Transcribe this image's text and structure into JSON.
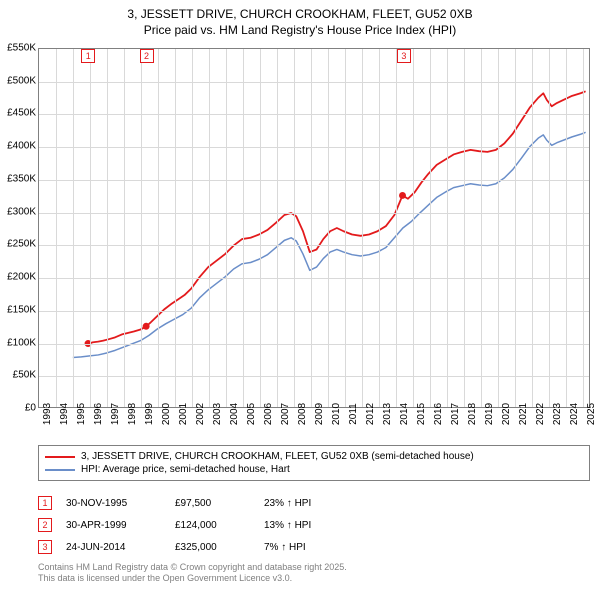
{
  "title": {
    "line1": "3, JESSETT DRIVE, CHURCH CROOKHAM, FLEET, GU52 0XB",
    "line2": "Price paid vs. HM Land Registry's House Price Index (HPI)"
  },
  "chart": {
    "type": "line",
    "background_color": "#ffffff",
    "border_color": "#808080",
    "grid_color": "#d9d9d9",
    "ylim": [
      0,
      550000
    ],
    "ytick_step": 50000,
    "yticks": [
      {
        "v": 0,
        "label": "£0"
      },
      {
        "v": 50000,
        "label": "£50K"
      },
      {
        "v": 100000,
        "label": "£100K"
      },
      {
        "v": 150000,
        "label": "£150K"
      },
      {
        "v": 200000,
        "label": "£200K"
      },
      {
        "v": 250000,
        "label": "£250K"
      },
      {
        "v": 300000,
        "label": "£300K"
      },
      {
        "v": 350000,
        "label": "£350K"
      },
      {
        "v": 400000,
        "label": "£400K"
      },
      {
        "v": 450000,
        "label": "£450K"
      },
      {
        "v": 500000,
        "label": "£500K"
      },
      {
        "v": 550000,
        "label": "£550K"
      }
    ],
    "xlim": [
      1993,
      2025.5
    ],
    "xticks": [
      1993,
      1994,
      1995,
      1996,
      1997,
      1998,
      1999,
      2000,
      2001,
      2002,
      2003,
      2004,
      2005,
      2006,
      2007,
      2008,
      2009,
      2010,
      2011,
      2012,
      2013,
      2014,
      2015,
      2016,
      2017,
      2018,
      2019,
      2020,
      2021,
      2022,
      2023,
      2024,
      2025
    ],
    "series": [
      {
        "key": "property",
        "label": "3, JESSETT DRIVE, CHURCH CROOKHAM, FLEET, GU52 0XB (semi-detached house)",
        "color": "#e31a1c",
        "line_width": 1.8,
        "data": [
          [
            1995.9,
            97500
          ],
          [
            1996.2,
            99500
          ],
          [
            1996.5,
            100500
          ],
          [
            1996.8,
            102000
          ],
          [
            1997.1,
            104000
          ],
          [
            1997.5,
            107000
          ],
          [
            1997.9,
            111500
          ],
          [
            1998.3,
            114000
          ],
          [
            1998.6,
            116000
          ],
          [
            1999.0,
            119000
          ],
          [
            1999.33,
            124000
          ],
          [
            1999.6,
            130000
          ],
          [
            2000.0,
            140000
          ],
          [
            2000.4,
            150000
          ],
          [
            2000.8,
            158000
          ],
          [
            2001.2,
            165000
          ],
          [
            2001.6,
            172000
          ],
          [
            2002.0,
            182000
          ],
          [
            2002.5,
            200000
          ],
          [
            2003.0,
            215000
          ],
          [
            2003.5,
            225000
          ],
          [
            2004.0,
            235000
          ],
          [
            2004.5,
            248000
          ],
          [
            2005.0,
            258000
          ],
          [
            2005.5,
            260000
          ],
          [
            2006.0,
            265000
          ],
          [
            2006.5,
            272000
          ],
          [
            2007.0,
            283000
          ],
          [
            2007.5,
            295000
          ],
          [
            2007.9,
            298000
          ],
          [
            2008.2,
            293000
          ],
          [
            2008.6,
            270000
          ],
          [
            2009.0,
            238000
          ],
          [
            2009.4,
            242000
          ],
          [
            2009.8,
            258000
          ],
          [
            2010.2,
            270000
          ],
          [
            2010.6,
            275000
          ],
          [
            2011.0,
            270000
          ],
          [
            2011.5,
            265000
          ],
          [
            2012.0,
            263000
          ],
          [
            2012.5,
            265000
          ],
          [
            2013.0,
            270000
          ],
          [
            2013.5,
            278000
          ],
          [
            2014.0,
            295000
          ],
          [
            2014.48,
            325000
          ],
          [
            2014.8,
            320000
          ],
          [
            2015.2,
            330000
          ],
          [
            2015.6,
            345000
          ],
          [
            2016.0,
            358000
          ],
          [
            2016.5,
            372000
          ],
          [
            2017.0,
            380000
          ],
          [
            2017.5,
            388000
          ],
          [
            2018.0,
            392000
          ],
          [
            2018.5,
            395000
          ],
          [
            2019.0,
            393000
          ],
          [
            2019.5,
            392000
          ],
          [
            2020.0,
            395000
          ],
          [
            2020.5,
            405000
          ],
          [
            2021.0,
            420000
          ],
          [
            2021.5,
            440000
          ],
          [
            2022.0,
            460000
          ],
          [
            2022.5,
            475000
          ],
          [
            2022.8,
            482000
          ],
          [
            2023.0,
            472000
          ],
          [
            2023.3,
            462000
          ],
          [
            2023.6,
            467000
          ],
          [
            2024.0,
            472000
          ],
          [
            2024.5,
            478000
          ],
          [
            2025.0,
            482000
          ],
          [
            2025.3,
            485000
          ]
        ]
      },
      {
        "key": "hpi",
        "label": "HPI: Average price, semi-detached house, Hart",
        "color": "#6a8ec9",
        "line_width": 1.5,
        "data": [
          [
            1995.0,
            76000
          ],
          [
            1995.5,
            77000
          ],
          [
            1996.0,
            78500
          ],
          [
            1996.5,
            80000
          ],
          [
            1997.0,
            83000
          ],
          [
            1997.5,
            87000
          ],
          [
            1998.0,
            92000
          ],
          [
            1998.5,
            97000
          ],
          [
            1999.0,
            102000
          ],
          [
            1999.5,
            110000
          ],
          [
            2000.0,
            120000
          ],
          [
            2000.5,
            128000
          ],
          [
            2001.0,
            135000
          ],
          [
            2001.5,
            142000
          ],
          [
            2002.0,
            152000
          ],
          [
            2002.5,
            168000
          ],
          [
            2003.0,
            180000
          ],
          [
            2003.5,
            190000
          ],
          [
            2004.0,
            200000
          ],
          [
            2004.5,
            212000
          ],
          [
            2005.0,
            220000
          ],
          [
            2005.5,
            222000
          ],
          [
            2006.0,
            227000
          ],
          [
            2006.5,
            234000
          ],
          [
            2007.0,
            245000
          ],
          [
            2007.5,
            256000
          ],
          [
            2007.9,
            260000
          ],
          [
            2008.2,
            255000
          ],
          [
            2008.6,
            235000
          ],
          [
            2009.0,
            210000
          ],
          [
            2009.4,
            215000
          ],
          [
            2009.8,
            228000
          ],
          [
            2010.2,
            238000
          ],
          [
            2010.6,
            242000
          ],
          [
            2011.0,
            238000
          ],
          [
            2011.5,
            234000
          ],
          [
            2012.0,
            232000
          ],
          [
            2012.5,
            234000
          ],
          [
            2013.0,
            238000
          ],
          [
            2013.5,
            245000
          ],
          [
            2014.0,
            260000
          ],
          [
            2014.5,
            275000
          ],
          [
            2015.0,
            285000
          ],
          [
            2015.5,
            298000
          ],
          [
            2016.0,
            310000
          ],
          [
            2016.5,
            322000
          ],
          [
            2017.0,
            330000
          ],
          [
            2017.5,
            337000
          ],
          [
            2018.0,
            340000
          ],
          [
            2018.5,
            343000
          ],
          [
            2019.0,
            341000
          ],
          [
            2019.5,
            340000
          ],
          [
            2020.0,
            343000
          ],
          [
            2020.5,
            352000
          ],
          [
            2021.0,
            365000
          ],
          [
            2021.5,
            382000
          ],
          [
            2022.0,
            400000
          ],
          [
            2022.5,
            413000
          ],
          [
            2022.8,
            418000
          ],
          [
            2023.0,
            410000
          ],
          [
            2023.3,
            402000
          ],
          [
            2023.6,
            406000
          ],
          [
            2024.0,
            410000
          ],
          [
            2024.5,
            415000
          ],
          [
            2025.0,
            419000
          ],
          [
            2025.3,
            422000
          ]
        ]
      }
    ],
    "markers": [
      {
        "n": "1",
        "x": 1995.9,
        "y_top": 540000,
        "color": "#e31a1c"
      },
      {
        "n": "2",
        "x": 1999.33,
        "y_top": 540000,
        "color": "#e31a1c"
      },
      {
        "n": "3",
        "x": 2014.48,
        "y_top": 540000,
        "color": "#e31a1c"
      }
    ],
    "data_points": [
      {
        "x": 1995.9,
        "y": 97500,
        "color": "#e31a1c"
      },
      {
        "x": 1999.33,
        "y": 124000,
        "color": "#e31a1c"
      },
      {
        "x": 2014.48,
        "y": 325000,
        "color": "#e31a1c"
      }
    ]
  },
  "legend": [
    {
      "color": "#e31a1c",
      "text": "3, JESSETT DRIVE, CHURCH CROOKHAM, FLEET, GU52 0XB (semi-detached house)"
    },
    {
      "color": "#6a8ec9",
      "text": "HPI: Average price, semi-detached house, Hart"
    }
  ],
  "events": [
    {
      "n": "1",
      "date": "30-NOV-1995",
      "price": "£97,500",
      "hpi": "23% ↑ HPI",
      "color": "#e31a1c"
    },
    {
      "n": "2",
      "date": "30-APR-1999",
      "price": "£124,000",
      "hpi": "13% ↑ HPI",
      "color": "#e31a1c"
    },
    {
      "n": "3",
      "date": "24-JUN-2014",
      "price": "£325,000",
      "hpi": "7% ↑ HPI",
      "color": "#e31a1c"
    }
  ],
  "footer": {
    "line1": "Contains HM Land Registry data © Crown copyright and database right 2025.",
    "line2": "This data is licensed under the Open Government Licence v3.0."
  }
}
